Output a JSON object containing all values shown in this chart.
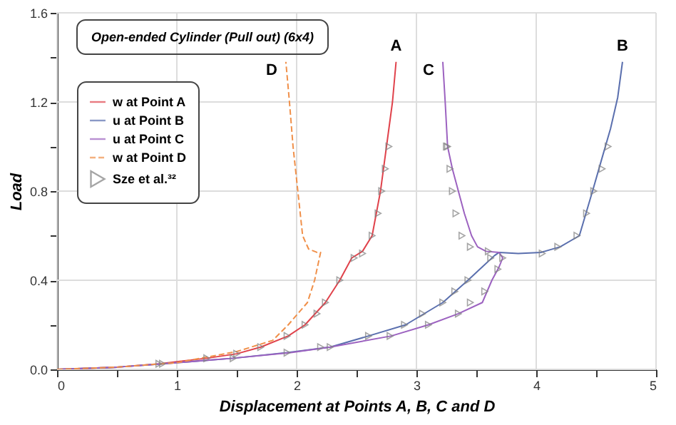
{
  "chart_data": {
    "type": "line",
    "title": "Open-ended Cylinder (Pull out) (6x4)",
    "xlabel": "Displacement at Points A, B, C and D",
    "ylabel": "Load",
    "xlim": [
      0,
      5
    ],
    "ylim": [
      0,
      1.6
    ],
    "xticks": [
      0,
      {
        "value": 0.5,
        "label": null
      },
      1,
      {
        "value": 1.5,
        "label": null
      },
      2,
      {
        "value": 2.5,
        "label": null
      },
      3,
      {
        "value": 3.5,
        "label": null
      },
      4,
      {
        "value": 4.5,
        "label": null
      },
      5
    ],
    "yticks": [
      {
        "value": 0,
        "label": "0.0"
      },
      {
        "value": 0.2,
        "label": null
      },
      {
        "value": 0.4,
        "label": "0.4"
      },
      {
        "value": 0.6,
        "label": null
      },
      {
        "value": 0.8,
        "label": "0.8"
      },
      {
        "value": 1.0,
        "label": null
      },
      {
        "value": 1.2,
        "label": "1.2"
      },
      {
        "value": 1.4,
        "label": null
      },
      {
        "value": 1.6,
        "label": "1.6"
      }
    ],
    "grid": true,
    "legend": "top left",
    "line_style": "solid",
    "series": [
      {
        "name": "w at Point A",
        "color": "#e0424b",
        "x": [
          0,
          0.5,
          0.85,
          1.25,
          1.5,
          1.7,
          1.93,
          2.07,
          2.24,
          2.36,
          2.46,
          2.55,
          2.63,
          2.7,
          2.75,
          2.8,
          2.83
        ],
        "values": [
          0,
          0.01,
          0.025,
          0.05,
          0.07,
          0.1,
          0.15,
          0.2,
          0.3,
          0.4,
          0.5,
          0.53,
          0.6,
          0.8,
          1.0,
          1.2,
          1.38
        ]
      },
      {
        "name": "u at Point B",
        "color": "#5a6fae",
        "x": [
          0,
          0.5,
          0.88,
          1.47,
          1.92,
          2.28,
          2.6,
          2.91,
          3.22,
          3.43,
          3.55,
          3.65,
          3.69,
          3.85,
          4.04,
          4.2,
          4.36,
          4.47,
          4.55,
          4.62,
          4.68,
          4.72
        ],
        "values": [
          0,
          0.01,
          0.025,
          0.05,
          0.075,
          0.1,
          0.15,
          0.2,
          0.3,
          0.4,
          0.46,
          0.51,
          0.525,
          0.52,
          0.525,
          0.55,
          0.6,
          0.8,
          0.95,
          1.08,
          1.22,
          1.38
        ]
      },
      {
        "name": "u at Point C",
        "color": "#9c62c0",
        "x": [
          0,
          0.5,
          0.88,
          1.47,
          1.95,
          2.28,
          2.79,
          3.1,
          3.35,
          3.55,
          3.63,
          3.69,
          3.72,
          3.69,
          3.58,
          3.51,
          3.46,
          3.4,
          3.35,
          3.3,
          3.26,
          3.24,
          3.22
        ],
        "values": [
          0,
          0.01,
          0.025,
          0.05,
          0.075,
          0.1,
          0.15,
          0.2,
          0.25,
          0.3,
          0.4,
          0.46,
          0.5,
          0.525,
          0.53,
          0.55,
          0.6,
          0.7,
          0.8,
          0.9,
          1.0,
          1.2,
          1.38
        ]
      },
      {
        "name": "w at Point D",
        "color": "#f0904a",
        "line_style": "dashed",
        "x": [
          0,
          0.5,
          1.0,
          1.5,
          1.8,
          1.93,
          2.09,
          2.15,
          2.19,
          2.2,
          2.17,
          2.1,
          2.05,
          2.01,
          1.97,
          1.94,
          1.91
        ],
        "values": [
          0,
          0.01,
          0.03,
          0.08,
          0.13,
          0.2,
          0.3,
          0.4,
          0.5,
          0.525,
          0.525,
          0.54,
          0.6,
          0.8,
          1.0,
          1.2,
          1.38
        ]
      },
      {
        "name": "Sze et al.³²",
        "type": "scatter",
        "marker": "triangle",
        "color": "#808080",
        "x": [
          0.85,
          1.25,
          1.5,
          1.7,
          1.92,
          2.07,
          2.17,
          2.24,
          2.36,
          2.48,
          2.55,
          2.63,
          2.68,
          2.71,
          2.74,
          2.77,
          0.88,
          1.47,
          1.92,
          2.2,
          2.6,
          2.9,
          3.05,
          3.22,
          3.32,
          3.43,
          3.62,
          4.05,
          4.18,
          4.34,
          4.42,
          4.48,
          4.55,
          4.6,
          2.28,
          2.78,
          3.1,
          3.35,
          3.45,
          3.57,
          3.68,
          3.72,
          3.6,
          3.45,
          3.38,
          3.33,
          3.3,
          3.28,
          3.26,
          3.25
        ],
        "values": [
          0.025,
          0.05,
          0.07,
          0.1,
          0.15,
          0.2,
          0.25,
          0.3,
          0.4,
          0.5,
          0.52,
          0.6,
          0.7,
          0.8,
          0.9,
          1.0,
          0.025,
          0.05,
          0.075,
          0.1,
          0.15,
          0.2,
          0.25,
          0.3,
          0.35,
          0.4,
          0.5,
          0.52,
          0.55,
          0.6,
          0.7,
          0.8,
          0.9,
          1.0,
          0.1,
          0.15,
          0.2,
          0.25,
          0.3,
          0.35,
          0.45,
          0.5,
          0.53,
          0.55,
          0.6,
          0.7,
          0.8,
          0.9,
          1.0,
          1.0
        ]
      }
    ],
    "annotations": [
      "A",
      "B",
      "C",
      "D"
    ]
  }
}
